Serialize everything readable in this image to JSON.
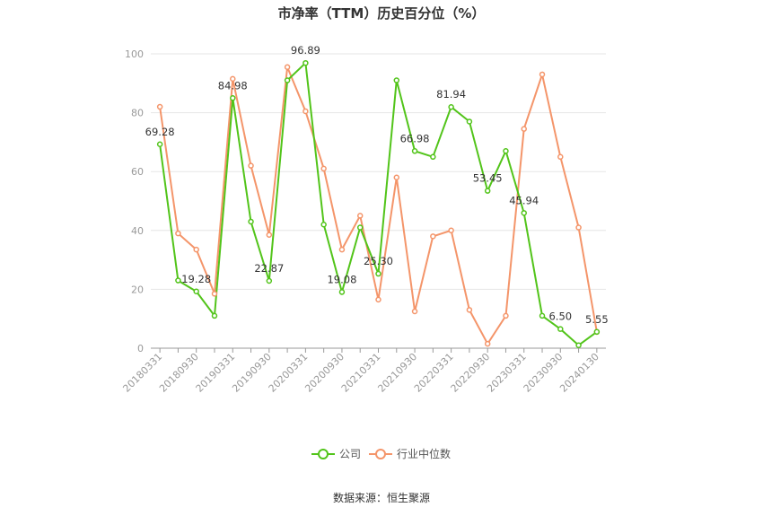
{
  "chart_data": {
    "type": "line",
    "title": "市净率（TTM）历史百分位（%）",
    "source": "数据来源：恒生聚源",
    "ylim": [
      0,
      100
    ],
    "yticks": [
      0,
      20,
      40,
      60,
      80,
      100
    ],
    "grid": true,
    "legend_position": "bottom",
    "x": [
      "20180331",
      "20180630",
      "20180930",
      "20181231",
      "20190331",
      "20190630",
      "20190930",
      "20191231",
      "20200331",
      "20200630",
      "20200930",
      "20201231",
      "20210331",
      "20210630",
      "20210930",
      "20211231",
      "20220331",
      "20220630",
      "20220930",
      "20221231",
      "20230331",
      "20230630",
      "20230930",
      "20231231",
      "20240130"
    ],
    "xtick_labels": [
      "20180331",
      "20180930",
      "20190331",
      "20190930",
      "20200331",
      "20200930",
      "20210331",
      "20210930",
      "20220331",
      "20220930",
      "20230331",
      "20230930",
      "20240130"
    ],
    "series": [
      {
        "name": "公司",
        "color": "#52c41a",
        "values": [
          69.28,
          23.0,
          19.28,
          11.0,
          84.98,
          43.0,
          22.87,
          91.0,
          96.89,
          42.0,
          19.08,
          41.0,
          25.3,
          91.0,
          66.98,
          65.0,
          81.94,
          77.0,
          53.45,
          67.0,
          45.94,
          11.0,
          6.5,
          1.0,
          5.55
        ]
      },
      {
        "name": "行业中位数",
        "color": "#f4956a",
        "values": [
          82.0,
          39.0,
          33.5,
          18.5,
          91.5,
          62.0,
          38.5,
          95.5,
          80.5,
          61.0,
          33.5,
          45.0,
          16.5,
          58.0,
          12.5,
          38.0,
          40.0,
          13.0,
          1.5,
          11.0,
          74.5,
          93.0,
          65.0,
          41.0,
          5.5
        ]
      }
    ],
    "data_labels": [
      {
        "series": 0,
        "index": 0,
        "text": "69.28"
      },
      {
        "series": 0,
        "index": 2,
        "text": "19.28"
      },
      {
        "series": 0,
        "index": 4,
        "text": "84.98"
      },
      {
        "series": 0,
        "index": 6,
        "text": "22.87"
      },
      {
        "series": 0,
        "index": 8,
        "text": "96.89"
      },
      {
        "series": 0,
        "index": 10,
        "text": "19.08"
      },
      {
        "series": 0,
        "index": 12,
        "text": "25.30"
      },
      {
        "series": 0,
        "index": 14,
        "text": "66.98"
      },
      {
        "series": 0,
        "index": 16,
        "text": "81.94"
      },
      {
        "series": 0,
        "index": 18,
        "text": "53.45"
      },
      {
        "series": 0,
        "index": 20,
        "text": "45.94"
      },
      {
        "series": 0,
        "index": 22,
        "text": "6.50"
      },
      {
        "series": 0,
        "index": 24,
        "text": "5.55"
      }
    ]
  }
}
